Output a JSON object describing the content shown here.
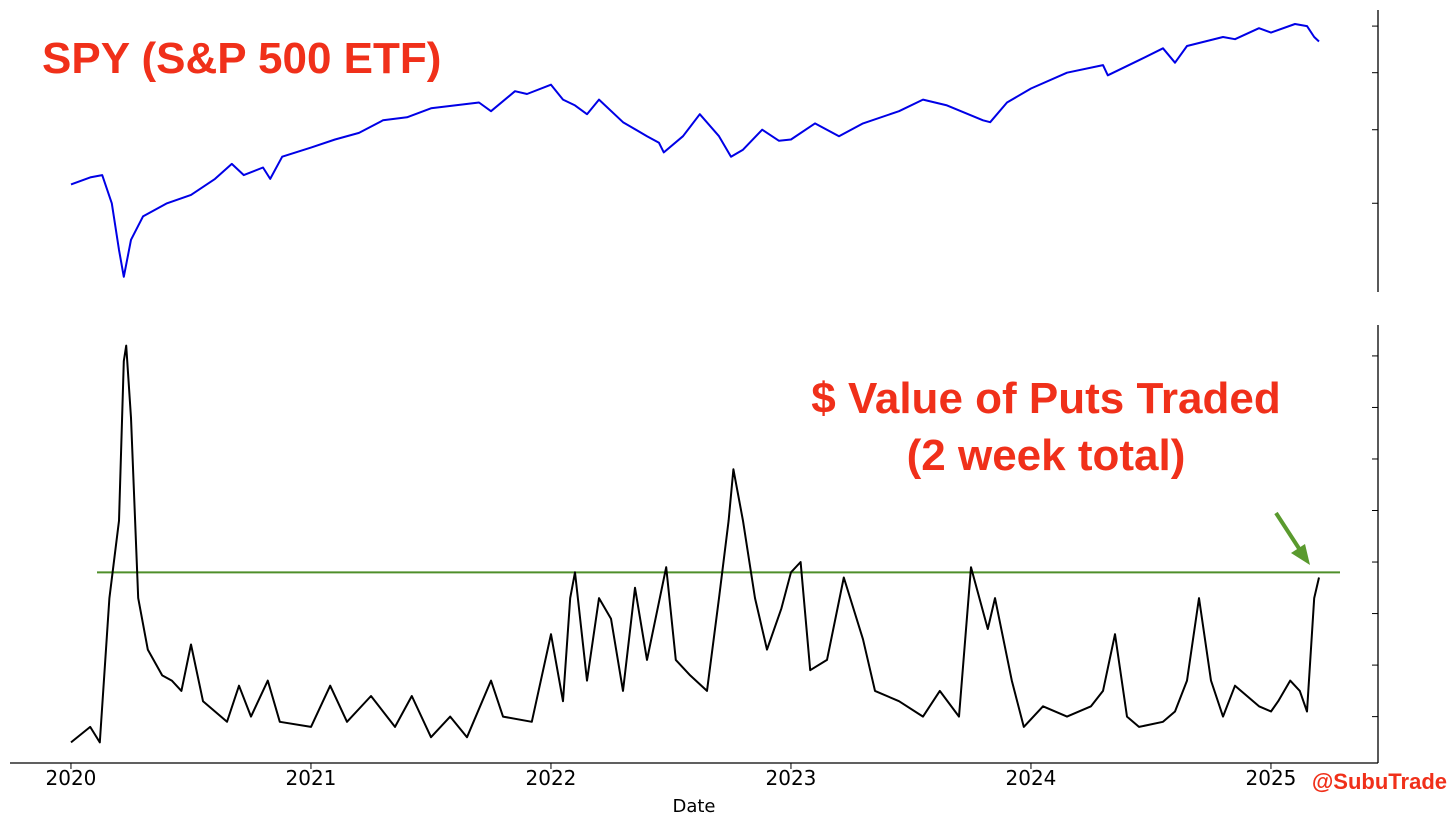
{
  "chart_data": [
    {
      "type": "line",
      "title": "SPY (S&P 500 ETF)",
      "color": "#0000e6",
      "log_y": true,
      "x": [
        2020.0,
        2020.08,
        2020.13,
        2020.17,
        2020.2,
        2020.22,
        2020.25,
        2020.3,
        2020.4,
        2020.5,
        2020.6,
        2020.67,
        2020.72,
        2020.8,
        2020.83,
        2020.88,
        2021.0,
        2021.1,
        2021.2,
        2021.3,
        2021.4,
        2021.5,
        2021.6,
        2021.7,
        2021.75,
        2021.85,
        2021.9,
        2022.0,
        2022.05,
        2022.1,
        2022.15,
        2022.2,
        2022.3,
        2022.4,
        2022.45,
        2022.47,
        2022.55,
        2022.62,
        2022.7,
        2022.75,
        2022.8,
        2022.88,
        2022.95,
        2023.0,
        2023.1,
        2023.2,
        2023.3,
        2023.45,
        2023.55,
        2023.65,
        2023.8,
        2023.83,
        2023.9,
        2024.0,
        2024.15,
        2024.3,
        2024.32,
        2024.45,
        2024.55,
        2024.6,
        2024.65,
        2024.8,
        2024.85,
        2024.95,
        2025.0,
        2025.1,
        2025.15,
        2025.18,
        2025.2
      ],
      "values": [
        323,
        332,
        335,
        300,
        250,
        225,
        260,
        285,
        300,
        310,
        330,
        350,
        335,
        345,
        330,
        360,
        373,
        385,
        395,
        415,
        420,
        435,
        440,
        445,
        430,
        465,
        460,
        477,
        450,
        440,
        425,
        450,
        412,
        390,
        380,
        366,
        390,
        425,
        390,
        360,
        370,
        400,
        383,
        385,
        410,
        390,
        410,
        430,
        450,
        440,
        415,
        412,
        445,
        470,
        500,
        515,
        495,
        525,
        550,
        520,
        555,
        575,
        570,
        595,
        585,
        605,
        600,
        575,
        565
      ],
      "xlim": [
        2019.746,
        2025.446
      ],
      "ylim": [
        212,
        639
      ],
      "yticks": [
        300,
        400,
        500,
        600
      ]
    },
    {
      "type": "line",
      "annotation": [
        "$ Value of Puts Traded",
        "(2 week total)"
      ],
      "color": "#000000",
      "x": [
        2020.0,
        2020.08,
        2020.12,
        2020.16,
        2020.2,
        2020.22,
        2020.23,
        2020.25,
        2020.28,
        2020.32,
        2020.38,
        2020.42,
        2020.46,
        2020.5,
        2020.55,
        2020.65,
        2020.7,
        2020.75,
        2020.82,
        2020.87,
        2021.0,
        2021.08,
        2021.15,
        2021.25,
        2021.35,
        2021.42,
        2021.5,
        2021.58,
        2021.65,
        2021.75,
        2021.8,
        2021.92,
        2022.0,
        2022.05,
        2022.08,
        2022.1,
        2022.15,
        2022.2,
        2022.25,
        2022.3,
        2022.35,
        2022.4,
        2022.48,
        2022.52,
        2022.58,
        2022.65,
        2022.7,
        2022.74,
        2022.76,
        2022.8,
        2022.85,
        2022.9,
        2022.96,
        2023.0,
        2023.04,
        2023.08,
        2023.15,
        2023.22,
        2023.3,
        2023.35,
        2023.45,
        2023.55,
        2023.62,
        2023.7,
        2023.75,
        2023.82,
        2023.85,
        2023.92,
        2023.97,
        2024.05,
        2024.15,
        2024.25,
        2024.3,
        2024.35,
        2024.4,
        2024.45,
        2024.55,
        2024.6,
        2024.65,
        2024.7,
        2024.75,
        2024.8,
        2024.85,
        2024.95,
        2025.0,
        2025.03,
        2025.08,
        2025.12,
        2025.15,
        2025.18,
        2025.2
      ],
      "values": [
        0.5,
        0.8,
        0.5,
        3.3,
        4.8,
        7.9,
        8.2,
        6.8,
        3.3,
        2.3,
        1.8,
        1.7,
        1.5,
        2.4,
        1.3,
        0.9,
        1.6,
        1.0,
        1.7,
        0.9,
        0.8,
        1.6,
        0.9,
        1.4,
        0.8,
        1.4,
        0.6,
        1.0,
        0.6,
        1.7,
        1.0,
        0.9,
        2.6,
        1.3,
        3.3,
        3.8,
        1.7,
        3.3,
        2.9,
        1.5,
        3.5,
        2.1,
        3.9,
        2.1,
        1.8,
        1.5,
        3.3,
        4.8,
        5.8,
        4.8,
        3.3,
        2.3,
        3.1,
        3.8,
        4.0,
        1.9,
        2.1,
        3.7,
        2.5,
        1.5,
        1.3,
        1.0,
        1.5,
        1.0,
        3.9,
        2.7,
        3.3,
        1.7,
        0.8,
        1.2,
        1.0,
        1.2,
        1.5,
        2.6,
        1.0,
        0.8,
        0.9,
        1.1,
        1.7,
        3.3,
        1.7,
        1.0,
        1.6,
        1.2,
        1.1,
        1.3,
        1.7,
        1.5,
        1.1,
        3.3,
        3.7
      ],
      "hline": {
        "value": 3.8,
        "color": "#4f8f2a"
      },
      "xlim": [
        2019.746,
        2025.446
      ],
      "xticks": [
        2020,
        2021,
        2022,
        2023,
        2024,
        2025
      ],
      "xlabel": "Date",
      "ylim": [
        0.1,
        8.6
      ],
      "yticks": [
        1,
        2,
        3,
        4,
        5,
        6,
        7,
        8
      ],
      "watermark": "@SubuTrade"
    }
  ]
}
